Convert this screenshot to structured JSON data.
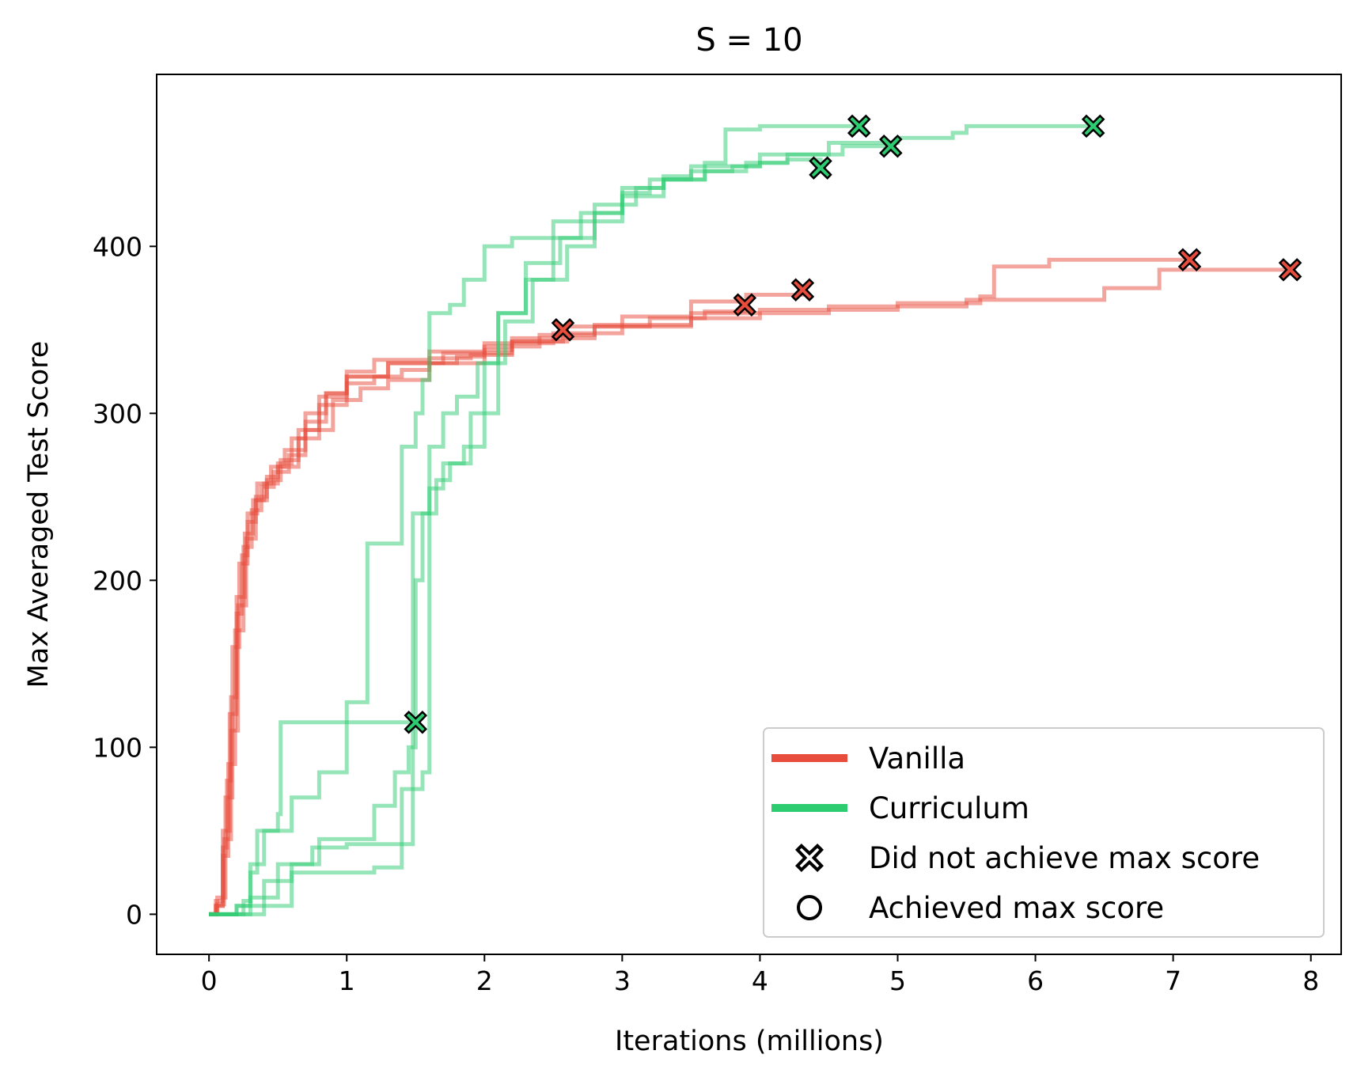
{
  "chart_data": {
    "type": "line",
    "title": "S = 10",
    "xlabel": "Iterations (millions)",
    "ylabel": "Max Averaged Test Score",
    "xlim": [
      -0.38,
      8.22
    ],
    "ylim": [
      -24,
      503
    ],
    "xticks": [
      "0",
      "1",
      "2",
      "3",
      "4",
      "5",
      "6",
      "7",
      "8"
    ],
    "yticks": [
      "0",
      "100",
      "200",
      "300",
      "400"
    ],
    "grid": false,
    "legend_position": "lower-right",
    "colors": {
      "vanilla": "#e74c3c",
      "curriculum": "#2ecc71"
    },
    "legend": [
      {
        "label": "Vanilla",
        "kind": "line",
        "color": "#e74c3c"
      },
      {
        "label": "Curriculum",
        "kind": "line",
        "color": "#2ecc71"
      },
      {
        "label": "Did not achieve max score",
        "kind": "x-marker"
      },
      {
        "label": "Achieved max score",
        "kind": "circle-marker"
      }
    ],
    "series": [
      {
        "group": "Vanilla",
        "color": "#e74c3c",
        "end_marker": "x",
        "points": [
          [
            0,
            0
          ],
          [
            0.05,
            5
          ],
          [
            0.1,
            40
          ],
          [
            0.13,
            80
          ],
          [
            0.16,
            130
          ],
          [
            0.2,
            180
          ],
          [
            0.24,
            215
          ],
          [
            0.28,
            235
          ],
          [
            0.34,
            250
          ],
          [
            0.42,
            262
          ],
          [
            0.5,
            270
          ],
          [
            0.6,
            285
          ],
          [
            0.7,
            300
          ],
          [
            0.85,
            312
          ],
          [
            1.0,
            318
          ],
          [
            1.2,
            322
          ],
          [
            1.4,
            326
          ],
          [
            1.6,
            330
          ],
          [
            1.8,
            334
          ],
          [
            2.0,
            338
          ],
          [
            2.2,
            343
          ],
          [
            2.57,
            350
          ]
        ]
      },
      {
        "group": "Vanilla",
        "color": "#e74c3c",
        "end_marker": "x",
        "points": [
          [
            0,
            0
          ],
          [
            0.06,
            10
          ],
          [
            0.12,
            70
          ],
          [
            0.17,
            160
          ],
          [
            0.22,
            210
          ],
          [
            0.28,
            240
          ],
          [
            0.35,
            258
          ],
          [
            0.45,
            268
          ],
          [
            0.55,
            278
          ],
          [
            0.7,
            290
          ],
          [
            0.9,
            308
          ],
          [
            1.1,
            315
          ],
          [
            1.3,
            320
          ],
          [
            1.6,
            330
          ],
          [
            2.0,
            340
          ],
          [
            2.4,
            347
          ],
          [
            2.8,
            352
          ],
          [
            3.2,
            357
          ],
          [
            3.6,
            361
          ],
          [
            3.89,
            365
          ]
        ]
      },
      {
        "group": "Vanilla",
        "color": "#e74c3c",
        "end_marker": "x",
        "points": [
          [
            0,
            0
          ],
          [
            0.05,
            8
          ],
          [
            0.1,
            50
          ],
          [
            0.15,
            120
          ],
          [
            0.2,
            190
          ],
          [
            0.26,
            228
          ],
          [
            0.32,
            248
          ],
          [
            0.4,
            258
          ],
          [
            0.5,
            268
          ],
          [
            0.65,
            285
          ],
          [
            0.8,
            305
          ],
          [
            1.0,
            322
          ],
          [
            1.3,
            330
          ],
          [
            1.6,
            333
          ],
          [
            1.9,
            335
          ],
          [
            2.2,
            343
          ],
          [
            2.6,
            352
          ],
          [
            3.0,
            358
          ],
          [
            3.5,
            367
          ],
          [
            3.9,
            371
          ],
          [
            4.31,
            374
          ]
        ]
      },
      {
        "group": "Vanilla",
        "color": "#e74c3c",
        "end_marker": "x",
        "points": [
          [
            0,
            0
          ],
          [
            0.06,
            6
          ],
          [
            0.11,
            45
          ],
          [
            0.16,
            110
          ],
          [
            0.21,
            185
          ],
          [
            0.27,
            225
          ],
          [
            0.34,
            248
          ],
          [
            0.42,
            260
          ],
          [
            0.52,
            272
          ],
          [
            0.65,
            290
          ],
          [
            0.8,
            310
          ],
          [
            1.0,
            325
          ],
          [
            1.2,
            332
          ],
          [
            1.6,
            337
          ],
          [
            2.0,
            342
          ],
          [
            2.5,
            348
          ],
          [
            3.0,
            352
          ],
          [
            3.5,
            357
          ],
          [
            4.0,
            362
          ],
          [
            5.0,
            366
          ],
          [
            5.6,
            370
          ],
          [
            5.7,
            388
          ],
          [
            6.1,
            392
          ],
          [
            7.12,
            392
          ]
        ]
      },
      {
        "group": "Vanilla",
        "color": "#e74c3c",
        "end_marker": "x",
        "points": [
          [
            0,
            0
          ],
          [
            0.05,
            5
          ],
          [
            0.1,
            35
          ],
          [
            0.14,
            90
          ],
          [
            0.19,
            170
          ],
          [
            0.25,
            220
          ],
          [
            0.31,
            242
          ],
          [
            0.38,
            256
          ],
          [
            0.47,
            265
          ],
          [
            0.58,
            275
          ],
          [
            0.7,
            295
          ],
          [
            0.85,
            312
          ],
          [
            1.0,
            322
          ],
          [
            1.3,
            330
          ],
          [
            1.7,
            336
          ],
          [
            2.2,
            345
          ],
          [
            2.8,
            353
          ],
          [
            3.5,
            360
          ],
          [
            4.5,
            364
          ],
          [
            5.5,
            368
          ],
          [
            6.5,
            375
          ],
          [
            6.9,
            386
          ],
          [
            7.85,
            386
          ]
        ]
      },
      {
        "group": "Curriculum",
        "color": "#2ecc71",
        "end_marker": "x",
        "points": [
          [
            0,
            0
          ],
          [
            0.2,
            5
          ],
          [
            0.3,
            25
          ],
          [
            0.35,
            50
          ],
          [
            0.5,
            60
          ],
          [
            0.52,
            115
          ],
          [
            1.0,
            115
          ],
          [
            1.5,
            115
          ]
        ]
      },
      {
        "group": "Curriculum",
        "color": "#2ecc71",
        "end_marker": "x",
        "points": [
          [
            0,
            0
          ],
          [
            0.25,
            8
          ],
          [
            0.3,
            30
          ],
          [
            0.4,
            50
          ],
          [
            0.6,
            70
          ],
          [
            0.8,
            85
          ],
          [
            1.0,
            127
          ],
          [
            1.15,
            128
          ],
          [
            1.15,
            222
          ],
          [
            1.4,
            222
          ],
          [
            1.4,
            280
          ],
          [
            1.5,
            300
          ],
          [
            1.55,
            320
          ],
          [
            1.6,
            360
          ],
          [
            1.75,
            365
          ],
          [
            1.85,
            380
          ],
          [
            2.0,
            400
          ],
          [
            2.2,
            405
          ],
          [
            2.5,
            415
          ],
          [
            2.8,
            425
          ],
          [
            3.1,
            435
          ],
          [
            3.3,
            442
          ],
          [
            3.5,
            445
          ],
          [
            3.8,
            448
          ],
          [
            4.0,
            450
          ],
          [
            4.2,
            452
          ],
          [
            4.44,
            447
          ]
        ]
      },
      {
        "group": "Curriculum",
        "color": "#2ecc71",
        "end_marker": "x",
        "points": [
          [
            0,
            0
          ],
          [
            0.3,
            10
          ],
          [
            0.5,
            30
          ],
          [
            0.8,
            45
          ],
          [
            1.2,
            65
          ],
          [
            1.35,
            85
          ],
          [
            1.45,
            100
          ],
          [
            1.5,
            200
          ],
          [
            1.55,
            240
          ],
          [
            1.65,
            260
          ],
          [
            1.75,
            270
          ],
          [
            1.9,
            300
          ],
          [
            2.1,
            360
          ],
          [
            2.3,
            380
          ],
          [
            2.5,
            405
          ],
          [
            2.7,
            420
          ],
          [
            3.0,
            430
          ],
          [
            3.3,
            440
          ],
          [
            3.6,
            450
          ],
          [
            3.75,
            455
          ],
          [
            3.75,
            470
          ],
          [
            4.0,
            472
          ],
          [
            4.72,
            472
          ]
        ]
      },
      {
        "group": "Curriculum",
        "color": "#2ecc71",
        "end_marker": "x",
        "points": [
          [
            0,
            0
          ],
          [
            0.4,
            5
          ],
          [
            0.6,
            25
          ],
          [
            1.0,
            25
          ],
          [
            1.2,
            28
          ],
          [
            1.4,
            75
          ],
          [
            1.55,
            85
          ],
          [
            1.6,
            255
          ],
          [
            1.7,
            270
          ],
          [
            1.85,
            280
          ],
          [
            2.0,
            330
          ],
          [
            2.15,
            355
          ],
          [
            2.35,
            380
          ],
          [
            2.6,
            400
          ],
          [
            2.8,
            415
          ],
          [
            3.0,
            435
          ],
          [
            3.3,
            440
          ],
          [
            3.6,
            445
          ],
          [
            3.9,
            450
          ],
          [
            4.2,
            455
          ],
          [
            4.6,
            460
          ],
          [
            4.95,
            460
          ]
        ]
      },
      {
        "group": "Curriculum",
        "color": "#2ecc71",
        "end_marker": "x",
        "points": [
          [
            0,
            0
          ],
          [
            0.2,
            5
          ],
          [
            0.4,
            20
          ],
          [
            0.6,
            30
          ],
          [
            0.75,
            40
          ],
          [
            1.0,
            42
          ],
          [
            1.4,
            42
          ],
          [
            1.48,
            240
          ],
          [
            1.6,
            280
          ],
          [
            1.7,
            300
          ],
          [
            1.8,
            310
          ],
          [
            1.95,
            330
          ],
          [
            2.1,
            360
          ],
          [
            2.3,
            390
          ],
          [
            2.55,
            405
          ],
          [
            2.8,
            420
          ],
          [
            3.0,
            432
          ],
          [
            3.2,
            440
          ],
          [
            3.5,
            448
          ],
          [
            4.0,
            455
          ],
          [
            4.5,
            462
          ],
          [
            5.0,
            465
          ],
          [
            5.4,
            468
          ],
          [
            5.5,
            472
          ],
          [
            6.42,
            472
          ]
        ]
      }
    ]
  }
}
